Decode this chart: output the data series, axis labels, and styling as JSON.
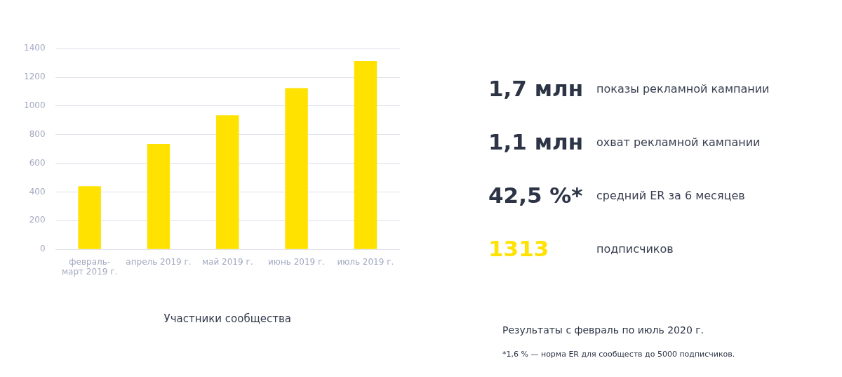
{
  "chart_data": [
    {
      "type": "bar",
      "xlabel": "Участники сообщества",
      "categories": [
        "февраль-март 2019 г.",
        "апрель 2019 г.",
        "май 2019 г.",
        "июнь 2019 г.",
        "июль 2019 г."
      ],
      "values": [
        440,
        735,
        935,
        1125,
        1313
      ],
      "color": "#ffe200",
      "ylim": [
        0,
        1400
      ],
      "yticks": [
        0,
        200,
        400,
        600,
        800,
        1000,
        1200,
        1400
      ],
      "grid": "y"
    },
    {
      "type": "other",
      "annotations": [
        "1,7 млн",
        "показы рекламной кампании",
        "1,1 млн",
        "охват рекламной кампании",
        "42,5 %*",
        "средний ER за 6 месяцев",
        "1313",
        "подписчиков",
        "Результаты с февраль по июль 2020 г.",
        "*1,6 % — норма ER для сообществ до 5000 подписчиков."
      ]
    }
  ]
}
